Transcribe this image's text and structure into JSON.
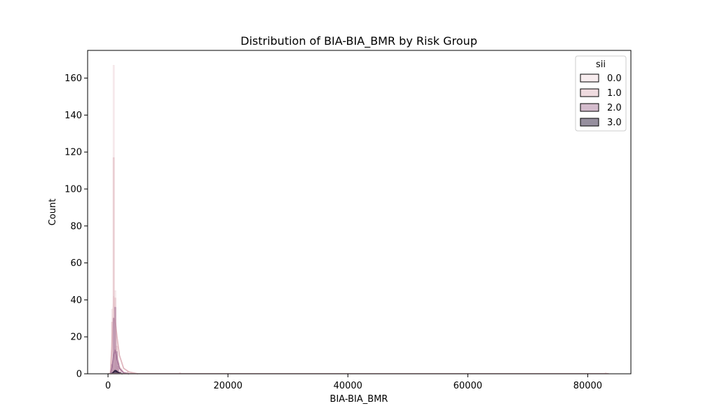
{
  "chart_data": {
    "type": "histogram",
    "title": "Distribution of BIA-BIA_BMR by Risk Group",
    "xlabel": "BIA-BIA_BMR",
    "ylabel": "Count",
    "xlim": [
      -3400,
      87200
    ],
    "ylim": [
      0,
      175
    ],
    "xticks": [
      0,
      20000,
      40000,
      60000,
      80000
    ],
    "xtick_labels": [
      "0",
      "20000",
      "40000",
      "60000",
      "80000"
    ],
    "yticks": [
      0,
      20,
      40,
      60,
      80,
      100,
      120,
      140,
      160
    ],
    "ytick_labels": [
      "0",
      "20",
      "40",
      "60",
      "80",
      "100",
      "120",
      "140",
      "160"
    ],
    "grid": false,
    "legend": {
      "title": "sii",
      "placement": "top-right"
    },
    "series": [
      {
        "name": "0.0",
        "color": "#efd9dd",
        "fill_opacity": 0.5,
        "bars": [
          {
            "x": 700,
            "y": 35
          },
          {
            "x": 950,
            "y": 167
          },
          {
            "x": 1200,
            "y": 45
          },
          {
            "x": 1450,
            "y": 12
          },
          {
            "x": 1700,
            "y": 4
          },
          {
            "x": 2000,
            "y": 1
          }
        ],
        "kde": [
          [
            400,
            0
          ],
          [
            700,
            20
          ],
          [
            950,
            42
          ],
          [
            1200,
            30
          ],
          [
            1500,
            12
          ],
          [
            1900,
            4
          ],
          [
            2600,
            1
          ],
          [
            3500,
            0
          ]
        ]
      },
      {
        "name": "1.0",
        "color": "#e0b7bf",
        "fill_opacity": 0.5,
        "bars": [
          {
            "x": 700,
            "y": 28
          },
          {
            "x": 950,
            "y": 117
          },
          {
            "x": 1200,
            "y": 41
          },
          {
            "x": 1450,
            "y": 15
          },
          {
            "x": 1700,
            "y": 6
          },
          {
            "x": 2100,
            "y": 2
          },
          {
            "x": 3300,
            "y": 1
          },
          {
            "x": 12000,
            "y": 0.5
          },
          {
            "x": 83000,
            "y": 0.5
          }
        ],
        "kde": [
          [
            400,
            0
          ],
          [
            700,
            18
          ],
          [
            950,
            30
          ],
          [
            1200,
            29
          ],
          [
            1500,
            20
          ],
          [
            1900,
            10
          ],
          [
            2600,
            3
          ],
          [
            3500,
            1
          ],
          [
            5000,
            0
          ]
        ]
      },
      {
        "name": "2.0",
        "color": "#a9799b",
        "fill_opacity": 0.5,
        "bars": [
          {
            "x": 700,
            "y": 5
          },
          {
            "x": 950,
            "y": 30
          },
          {
            "x": 1200,
            "y": 36
          },
          {
            "x": 1450,
            "y": 12
          },
          {
            "x": 1700,
            "y": 4
          },
          {
            "x": 2000,
            "y": 1
          }
        ],
        "kde": [
          [
            400,
            0
          ],
          [
            700,
            4
          ],
          [
            950,
            10
          ],
          [
            1200,
            13
          ],
          [
            1500,
            8
          ],
          [
            1900,
            3
          ],
          [
            2600,
            0.5
          ],
          [
            3500,
            0
          ]
        ]
      },
      {
        "name": "3.0",
        "color": "#2d1f3d",
        "fill_opacity": 0.5,
        "bars": [
          {
            "x": 950,
            "y": 1
          },
          {
            "x": 1200,
            "y": 2
          },
          {
            "x": 1450,
            "y": 1
          }
        ],
        "kde": [
          [
            500,
            0
          ],
          [
            800,
            0.5
          ],
          [
            1100,
            1.5
          ],
          [
            1400,
            1.5
          ],
          [
            1800,
            0.5
          ],
          [
            2400,
            0
          ]
        ]
      }
    ]
  }
}
